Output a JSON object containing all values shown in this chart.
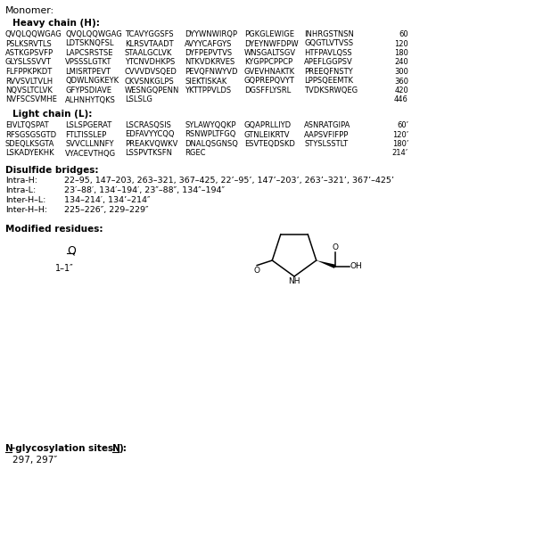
{
  "bg_color": "#ffffff",
  "text_color": "#000000",
  "monomer_label": "Monomer:",
  "heavy_header": "Heavy chain (H):",
  "heavy_rows": [
    [
      "QVQLQQWGAG",
      "QVQLQQWGAG",
      "TCAVYGGSFS",
      "DYYWNWIRQP",
      "PGKGLEWIGE",
      "INHRGSTNSN",
      "60"
    ],
    [
      "PSLKSRVTLS",
      "LDTSKNQFSL",
      "KLRSVTAADT",
      "AVYYCAFGYS",
      "DYEYNWFDPW",
      "GQGTLVTVSS",
      "120"
    ],
    [
      "ASTKGPSVFP",
      "LAPCSRSTSE",
      "STAALGCLVK",
      "DYFPEPVTVS",
      "WNSGALTSGV",
      "HTFPAVLQSS",
      "180"
    ],
    [
      "GLYSLSSVVT",
      "VPSSSLGTKT",
      "YTCNVDHKPS",
      "NTKVDKRVES",
      "KYGPPCPPCP",
      "APEFLGGPSV",
      "240"
    ],
    [
      "FLFPPKPKDT",
      "LMISRTPEVT",
      "CVVVDVSQED",
      "PEVQFNWYVD",
      "GVEVHNAKTK",
      "PREEQFNSTY",
      "300"
    ],
    [
      "RVVSVLTVLH",
      "QDWLNGKEYK",
      "CKVSNKGLPS",
      "SIEKTISKAK",
      "GQPREPQVYT",
      "LPPSQEEMTK",
      "360"
    ],
    [
      "NQVSLTCLVK",
      "GFYPSDIAVE",
      "WESNGQPENN",
      "YKTTPPVLDS",
      "DGSFFLYSRL",
      "TVDKSRWQEG",
      "420"
    ],
    [
      "NVFSCSVMHE",
      "ALHNHYTQKS",
      "LSLSLG",
      "",
      "",
      "",
      "446"
    ]
  ],
  "light_header": "Light chain (L):",
  "light_rows": [
    [
      "EIVLTQSPAT",
      "LSLSPGERAT",
      "LSCRASQSIS",
      "SYLAWYQQKP",
      "GQAPRLLIYD",
      "ASNRATGIPA",
      "60’"
    ],
    [
      "RFSGSGSGTD",
      "FTLTISSLEP",
      "EDFAVYYCQQ",
      "RSNWPLTFGQ",
      "GTNLEIKRTV",
      "AAPSVFIFPP",
      "120’"
    ],
    [
      "SDEQLKSGTA",
      "SVVCLLNNFY",
      "PREAKVQWKV",
      "DNALQSGNSQ",
      "ESVTEQDSKD",
      "STYSLSSTLT",
      "180’"
    ],
    [
      "LSKADYEKHK",
      "VYACEVTHQG",
      "LSSPVTKSFN",
      "RGEC",
      "",
      "",
      "214’"
    ]
  ],
  "disulfide_header": "Disulfide bridges:",
  "disulfide_rows": [
    [
      "Intra-H:",
      "22–95, 147–203, 263–321, 367–425, 22’–95’, 147’–203’, 263’–321’, 367’–425’"
    ],
    [
      "Intra-L:",
      "23′–88′, 134′–194′, 23″–88″, 134″–194″"
    ],
    [
      "Inter-H–L:",
      "134–214′, 134’–214″"
    ],
    [
      "Inter-H–H:",
      "225–226″, 229–229″"
    ]
  ],
  "modified_header": "Modified residues:",
  "modified_letter": "Q",
  "modified_pos_label": "1–1″",
  "glyco_sites": "297, 297″"
}
